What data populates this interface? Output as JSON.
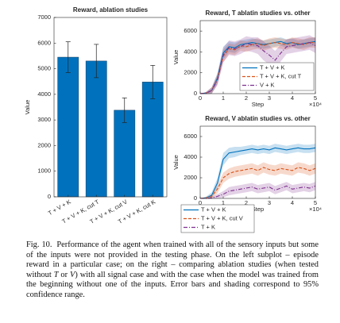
{
  "chart_data": [
    {
      "type": "bar",
      "title": "Reward, ablation studies",
      "ylabel": "Value",
      "categories": [
        "T + V + K",
        "T + V + K, cut T",
        "T + V + K, cut V",
        "T + V + K, cut K"
      ],
      "values": [
        5450,
        5300,
        3380,
        4480
      ],
      "errors": [
        600,
        650,
        480,
        650
      ],
      "color": "#0072bd",
      "ylim": [
        0,
        7000
      ],
      "yticks": [
        0,
        1000,
        2000,
        3000,
        4000,
        5000,
        6000,
        7000
      ]
    },
    {
      "type": "line",
      "title": "Reward, T ablatin studies vs. other",
      "ylabel": "Value",
      "xlabel": "Step",
      "x_scale_label": "×10⁴",
      "x": [
        0,
        0.25,
        0.5,
        0.75,
        1,
        1.25,
        1.5,
        1.75,
        2,
        2.25,
        2.5,
        2.75,
        3,
        3.25,
        3.5,
        3.75,
        4,
        4.25,
        4.5,
        4.75,
        5
      ],
      "xlim": [
        0,
        5
      ],
      "xticks": [
        0,
        1,
        2,
        3,
        4,
        5
      ],
      "ylim": [
        0,
        7000
      ],
      "yticks": [
        0,
        2000,
        4000,
        6000
      ],
      "legend": "right",
      "series": [
        {
          "name": "T + V + K",
          "color": "#0072bd",
          "style": "solid",
          "values": [
            0,
            50,
            300,
            1500,
            3900,
            4500,
            4400,
            4700,
            4800,
            4900,
            4800,
            4700,
            4800,
            4900,
            5000,
            4800,
            4900,
            4700,
            4800,
            4900,
            5000
          ],
          "ci": [
            0,
            100,
            300,
            500,
            600,
            500,
            500,
            400,
            400,
            400,
            400,
            400,
            400,
            400,
            400,
            400,
            400,
            400,
            400,
            400,
            400
          ]
        },
        {
          "name": "T + V + K, cut T",
          "color": "#d95319",
          "style": "dashed",
          "values": [
            0,
            50,
            300,
            1400,
            3600,
            4300,
            4200,
            4600,
            4500,
            4700,
            4800,
            4600,
            4800,
            4900,
            4800,
            4700,
            4900,
            4800,
            4700,
            4900,
            4900
          ],
          "ci": [
            0,
            100,
            300,
            500,
            600,
            500,
            500,
            500,
            500,
            500,
            500,
            500,
            500,
            500,
            500,
            500,
            500,
            500,
            500,
            500,
            500
          ]
        },
        {
          "name": "V + K",
          "color": "#7e2f8e",
          "style": "dashdot",
          "values": [
            0,
            50,
            300,
            1300,
            3700,
            4400,
            4300,
            4500,
            4800,
            4700,
            4600,
            4100,
            3700,
            3200,
            3900,
            4500,
            4600,
            4700,
            4800,
            4900,
            4600
          ],
          "ci": [
            0,
            100,
            300,
            500,
            700,
            700,
            700,
            700,
            700,
            700,
            800,
            900,
            900,
            900,
            800,
            700,
            700,
            700,
            700,
            700,
            700
          ]
        }
      ]
    },
    {
      "type": "line",
      "title": "Reward, V ablatin studies vs. other",
      "ylabel": "Value",
      "xlabel": "Step",
      "x_scale_label": "×10⁴",
      "x": [
        0,
        0.25,
        0.5,
        0.75,
        1,
        1.25,
        1.5,
        1.75,
        2,
        2.25,
        2.5,
        2.75,
        3,
        3.25,
        3.5,
        3.75,
        4,
        4.25,
        4.5,
        4.75,
        5
      ],
      "xlim": [
        0,
        5
      ],
      "xticks": [
        0,
        1,
        2,
        3,
        4,
        5
      ],
      "ylim": [
        0,
        7000
      ],
      "yticks": [
        0,
        2000,
        4000,
        6000
      ],
      "legend": "bottom",
      "series": [
        {
          "name": "T + V + K",
          "color": "#0072bd",
          "style": "solid",
          "values": [
            0,
            50,
            300,
            1500,
            3800,
            4400,
            4500,
            4600,
            4700,
            4800,
            4700,
            4800,
            4700,
            4900,
            4800,
            4700,
            4800,
            4900,
            4800,
            4800,
            4900
          ],
          "ci": [
            0,
            100,
            300,
            500,
            600,
            500,
            500,
            400,
            400,
            400,
            400,
            400,
            400,
            400,
            400,
            400,
            400,
            400,
            400,
            400,
            400
          ]
        },
        {
          "name": "T + V + K, cut V",
          "color": "#d95319",
          "style": "dashed",
          "values": [
            0,
            50,
            200,
            900,
            2000,
            2400,
            2600,
            2700,
            2800,
            2900,
            2700,
            3000,
            2800,
            2700,
            2900,
            2800,
            2700,
            3000,
            2900,
            2700,
            2900
          ],
          "ci": [
            0,
            100,
            200,
            400,
            500,
            500,
            500,
            500,
            500,
            500,
            500,
            500,
            500,
            500,
            500,
            500,
            500,
            500,
            500,
            500,
            500
          ]
        },
        {
          "name": "T + K",
          "color": "#7e2f8e",
          "style": "dashdot",
          "values": [
            0,
            0,
            50,
            200,
            400,
            700,
            800,
            900,
            1000,
            1100,
            900,
            1000,
            1100,
            800,
            1000,
            1200,
            900,
            1000,
            1100,
            1000,
            1200
          ],
          "ci": [
            0,
            50,
            100,
            200,
            300,
            400,
            400,
            400,
            400,
            400,
            400,
            400,
            400,
            400,
            400,
            400,
            400,
            400,
            400,
            400,
            400
          ]
        }
      ]
    }
  ],
  "caption": [
    "Fig. 10.",
    "Performance of the agent when trained with all of the sensory inputs but some of the inputs were not provided in the testing phase. On the left subplot – episode reward in a particular case; on the right – comparing ablation studies (when tested without ",
    "T",
    " or ",
    "V",
    ") with all signal case and with the case when the model was trained from the beginning without one of the inputs. Error bars and shading correspond to 95% confidence range."
  ]
}
